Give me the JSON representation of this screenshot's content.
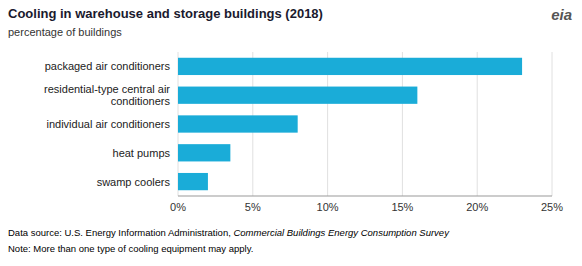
{
  "chart_data": {
    "type": "bar",
    "orientation": "horizontal",
    "title": "Cooling in warehouse and storage buildings (2018)",
    "subtitle": "percentage of buildings",
    "categories": [
      "swamp coolers",
      "heat pumps",
      "individual air conditioners",
      "residential-type central air\nconditioners",
      "packaged air conditioners"
    ],
    "values": [
      2.0,
      3.5,
      8.0,
      16.0,
      23.0
    ],
    "color": "#1aacd8",
    "xlim": [
      0,
      25
    ],
    "xticks": [
      {
        "value": 0,
        "label": "0%"
      },
      {
        "value": 5,
        "label": "5%"
      },
      {
        "value": 10,
        "label": "10%"
      },
      {
        "value": 15,
        "label": "15%"
      },
      {
        "value": 20,
        "label": "20%"
      },
      {
        "value": 25,
        "label": "25%"
      }
    ],
    "grid": true,
    "annotations": [
      "eia",
      "Data source: U.S. Energy Information Administration, ",
      "Commercial Buildings Energy Consumption Survey",
      "Note: More than one type of cooling equipment may apply."
    ]
  }
}
